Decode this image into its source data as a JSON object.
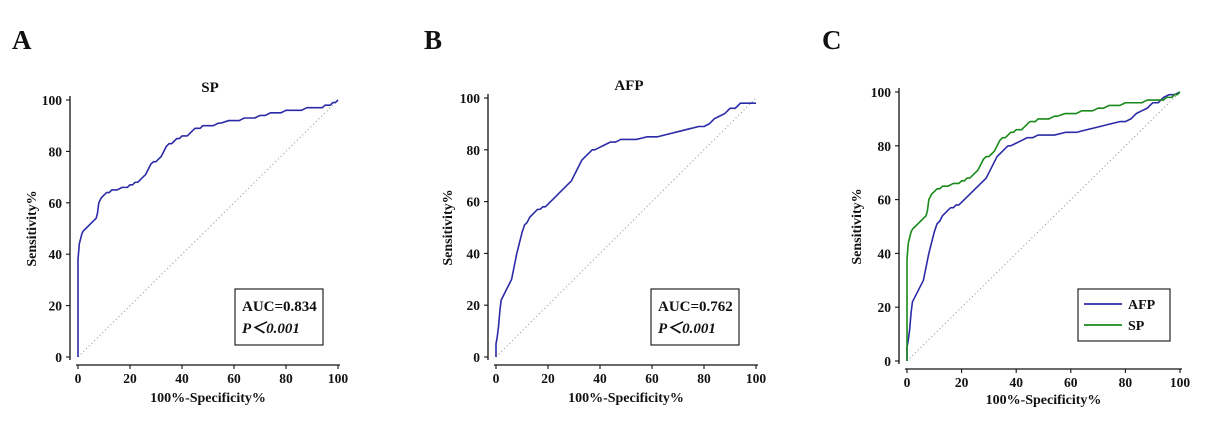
{
  "colors": {
    "afp": "#2b2ba8",
    "sp": "#1a8a1a",
    "axis": "#111111",
    "diagonal": "#9a9a9a"
  },
  "chart_data": [
    {
      "type": "line",
      "panel": "A",
      "title": "SP",
      "xlabel": "100%-Specificity%",
      "ylabel": "Sensitivity%",
      "xlim": [
        0,
        100
      ],
      "ylim": [
        0,
        100
      ],
      "xticks": [
        "0",
        "20",
        "40",
        "60",
        "80",
        "100"
      ],
      "yticks": [
        "0",
        "20",
        "40",
        "60",
        "80",
        "100"
      ],
      "annotation": {
        "auc": "AUC=0.834",
        "p": "P＜0.001"
      },
      "legend": [],
      "series": [
        {
          "name": "SP",
          "color": "#2b2ba8",
          "x": [
            0,
            0,
            0,
            0.5,
            1,
            1.5,
            2,
            3,
            4,
            5,
            6,
            7,
            7.5,
            8,
            9,
            10,
            11,
            12,
            13,
            15,
            17,
            19,
            20,
            21,
            22,
            23,
            24,
            25,
            26,
            27,
            28,
            29,
            30,
            31,
            32,
            33,
            34,
            35,
            36,
            37,
            38,
            39,
            40,
            41,
            42,
            43,
            44,
            45,
            46,
            47,
            48,
            50,
            52,
            54,
            55,
            58,
            60,
            62,
            64,
            66,
            68,
            70,
            72,
            74,
            76,
            78,
            80,
            82,
            84,
            86,
            88,
            90,
            92,
            94,
            95,
            96,
            97,
            98,
            99,
            100
          ],
          "y": [
            0,
            20,
            38,
            44,
            46,
            48,
            49,
            50,
            51,
            52,
            53,
            54,
            56,
            60,
            62,
            63,
            64,
            64,
            65,
            65,
            66,
            66,
            67,
            67,
            68,
            68,
            69,
            70,
            71,
            73,
            75,
            76,
            76,
            77,
            78,
            80,
            82,
            83,
            83,
            84,
            85,
            85,
            86,
            86,
            86,
            87,
            88,
            89,
            89,
            89,
            90,
            90,
            90,
            91,
            91,
            92,
            92,
            92,
            93,
            93,
            93,
            94,
            94,
            95,
            95,
            95,
            96,
            96,
            96,
            96,
            97,
            97,
            97,
            97,
            98,
            98,
            98,
            99,
            99,
            100
          ]
        }
      ]
    },
    {
      "type": "line",
      "panel": "B",
      "title": "AFP",
      "xlabel": "100%-Specificity%",
      "ylabel": "Sensitivity%",
      "xlim": [
        0,
        100
      ],
      "ylim": [
        0,
        100
      ],
      "xticks": [
        "0",
        "20",
        "40",
        "60",
        "80",
        "100"
      ],
      "yticks": [
        "0",
        "20",
        "40",
        "60",
        "80",
        "100"
      ],
      "annotation": {
        "auc": "AUC=0.762",
        "p": "P＜0.001"
      },
      "legend": [],
      "series": [
        {
          "name": "AFP",
          "color": "#2b2ba8",
          "x": [
            0,
            0,
            0.5,
            1,
            1.5,
            2,
            3,
            4,
            5,
            6,
            7,
            8,
            9,
            10,
            11,
            12,
            13,
            14,
            15,
            16,
            17,
            18,
            19,
            20,
            21,
            22,
            23,
            24,
            25,
            26,
            27,
            28,
            29,
            30,
            31,
            32,
            33,
            34,
            35,
            36,
            37,
            38,
            40,
            42,
            44,
            46,
            48,
            50,
            54,
            58,
            62,
            66,
            70,
            74,
            78,
            80,
            82,
            84,
            86,
            88,
            89,
            90,
            92,
            93,
            94,
            100
          ],
          "y": [
            0,
            5,
            8,
            12,
            18,
            22,
            24,
            26,
            28,
            30,
            35,
            40,
            44,
            48,
            51,
            52,
            54,
            55,
            56,
            57,
            57,
            58,
            58,
            59,
            60,
            61,
            62,
            63,
            64,
            65,
            66,
            67,
            68,
            70,
            72,
            74,
            76,
            77,
            78,
            79,
            80,
            80,
            81,
            82,
            83,
            83,
            84,
            84,
            84,
            85,
            85,
            86,
            87,
            88,
            89,
            89,
            90,
            92,
            93,
            94,
            95,
            96,
            96,
            97,
            98,
            98
          ]
        }
      ]
    },
    {
      "type": "line",
      "panel": "C",
      "title": "",
      "xlabel": "100%-Specificity%",
      "ylabel": "Sensitivity%",
      "xlim": [
        0,
        100
      ],
      "ylim": [
        0,
        100
      ],
      "xticks": [
        "0",
        "20",
        "40",
        "60",
        "80",
        "100"
      ],
      "yticks": [
        "0",
        "20",
        "40",
        "60",
        "80",
        "100"
      ],
      "annotation": null,
      "legend": [
        "AFP",
        "SP"
      ],
      "series": [
        {
          "name": "AFP",
          "color": "#2b2ba8",
          "x": [
            0,
            0,
            0.5,
            1,
            1.5,
            2,
            3,
            4,
            5,
            6,
            7,
            8,
            9,
            10,
            11,
            12,
            13,
            14,
            15,
            16,
            17,
            18,
            19,
            20,
            21,
            22,
            23,
            24,
            25,
            26,
            27,
            28,
            29,
            30,
            31,
            32,
            33,
            34,
            35,
            36,
            37,
            38,
            40,
            42,
            44,
            46,
            48,
            50,
            54,
            58,
            62,
            66,
            70,
            74,
            78,
            80,
            82,
            84,
            86,
            88,
            89,
            90,
            92,
            93,
            94,
            96,
            98,
            100
          ],
          "y": [
            0,
            5,
            8,
            12,
            18,
            22,
            24,
            26,
            28,
            30,
            35,
            40,
            44,
            48,
            51,
            52,
            54,
            55,
            56,
            57,
            57,
            58,
            58,
            59,
            60,
            61,
            62,
            63,
            64,
            65,
            66,
            67,
            68,
            70,
            72,
            74,
            76,
            77,
            78,
            79,
            80,
            80,
            81,
            82,
            83,
            83,
            84,
            84,
            84,
            85,
            85,
            86,
            87,
            88,
            89,
            89,
            90,
            92,
            93,
            94,
            95,
            96,
            96,
            97,
            98,
            99,
            99,
            100
          ]
        },
        {
          "name": "SP",
          "color": "#1a8a1a",
          "x": [
            0,
            0,
            0,
            0.5,
            1,
            1.5,
            2,
            3,
            4,
            5,
            6,
            7,
            7.5,
            8,
            9,
            10,
            11,
            12,
            13,
            15,
            17,
            19,
            20,
            21,
            22,
            23,
            24,
            25,
            26,
            27,
            28,
            29,
            30,
            31,
            32,
            33,
            34,
            35,
            36,
            37,
            38,
            39,
            40,
            41,
            42,
            43,
            44,
            45,
            46,
            47,
            48,
            50,
            52,
            54,
            55,
            58,
            60,
            62,
            64,
            66,
            68,
            70,
            72,
            74,
            76,
            78,
            80,
            82,
            84,
            86,
            88,
            90,
            92,
            94,
            95,
            96,
            97,
            98,
            99,
            100
          ],
          "y": [
            0,
            20,
            38,
            44,
            46,
            48,
            49,
            50,
            51,
            52,
            53,
            54,
            56,
            60,
            62,
            63,
            64,
            64,
            65,
            65,
            66,
            66,
            67,
            67,
            68,
            68,
            69,
            70,
            71,
            73,
            75,
            76,
            76,
            77,
            78,
            80,
            82,
            83,
            83,
            84,
            85,
            85,
            86,
            86,
            86,
            87,
            88,
            89,
            89,
            89,
            90,
            90,
            90,
            91,
            91,
            92,
            92,
            92,
            93,
            93,
            93,
            94,
            94,
            95,
            95,
            95,
            96,
            96,
            96,
            96,
            97,
            97,
            97,
            97,
            98,
            98,
            98,
            99,
            99,
            100
          ]
        }
      ]
    }
  ]
}
